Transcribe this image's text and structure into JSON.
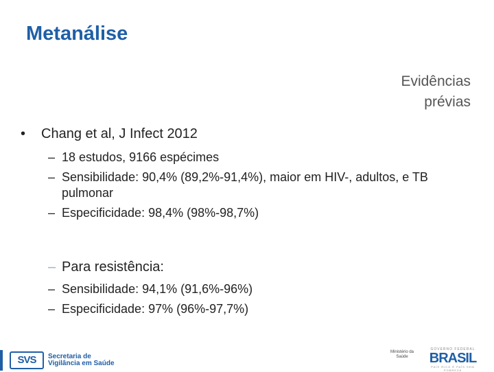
{
  "slide": {
    "title": "Metanálise",
    "side_note": [
      "Evidências",
      "prévias"
    ],
    "bullet_marker": "•",
    "dash_marker": "–",
    "main_bullet": "Chang et al, J Infect 2012",
    "sub_items": [
      "18 estudos, 9166 espécimes",
      "Sensibilidade: 90,4% (89,2%-91,4%), maior em HIV-, adultos, e TB pulmonar",
      "Especificidade: 98,4% (98%-98,7%)"
    ],
    "resistance_heading": "Para resistência:",
    "resistance_items": [
      "Sensibilidade: 94,1% (91,6%-96%)",
      "Especificidade: 97% (96%-97,7%)"
    ]
  },
  "footer": {
    "svs_mark": "SVS",
    "svs_line1": "Secretaria de",
    "svs_line2": "Vigilância em Saúde",
    "ministerio": "Ministério da Saúde",
    "brasil_top": "GOVERNO FEDERAL",
    "brasil_word": "BRASIL",
    "brasil_bottom": "PAÍS RICO É PAÍS SEM POBREZA"
  },
  "colors": {
    "accent": "#1f5fa6",
    "text": "#222222",
    "muted": "#555555"
  }
}
